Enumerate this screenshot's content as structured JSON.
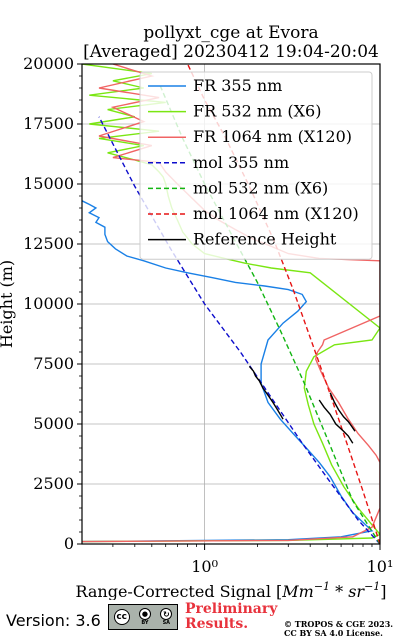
{
  "chart_data": {
    "type": "line",
    "title_line1": "pollyxt_cge at Evora",
    "title_line2": "[Averaged] 20230412 19:04-20:04",
    "xlabel": "Range-Corrected Signal [Mm⁻¹ * sr⁻¹]",
    "xlabel_parts": [
      "Range-Corrected Signal [",
      "Mm",
      "−1",
      " * ",
      "sr",
      "−1",
      "]"
    ],
    "ylabel": "Height (m)",
    "xscale": "log",
    "xlim": [
      0.2,
      10
    ],
    "ylim": [
      0,
      20000
    ],
    "x_tick_labels": [
      {
        "value": 1,
        "label": "10⁰"
      },
      {
        "value": 10,
        "label": "10¹"
      }
    ],
    "y_ticks": [
      0,
      2500,
      5000,
      7500,
      10000,
      12500,
      15000,
      17500,
      20000
    ],
    "y_tick_labels": [
      "0",
      "2500",
      "5000",
      "7500",
      "10000",
      "12500",
      "15000",
      "17500",
      "20000"
    ],
    "grid": true,
    "legend_position": "top-right",
    "series": [
      {
        "name": "FR 355 nm",
        "color": "#1a80e6",
        "style": "solid",
        "x": [
          0.2,
          3,
          6,
          9,
          8,
          7,
          6,
          5.2,
          4.5,
          3.8,
          3.2,
          2.7,
          2.3,
          2.1,
          2.1,
          2.3,
          2.8,
          3.4,
          3.8,
          3.6,
          3,
          2.2,
          1.5,
          1.1,
          0.8,
          0.6,
          0.45,
          0.36,
          0.31,
          0.28,
          0.27,
          0.27,
          0.24,
          0.25,
          0.22,
          0.24,
          0.22,
          0.2
        ],
        "y": [
          100,
          180,
          300,
          550,
          900,
          1300,
          2000,
          2800,
          3400,
          4000,
          4600,
          5200,
          5900,
          6700,
          7500,
          8500,
          9200,
          9700,
          10100,
          10400,
          10600,
          10750,
          10900,
          11100,
          11300,
          11500,
          11800,
          12000,
          12300,
          12600,
          12900,
          13200,
          13400,
          13600,
          13800,
          14000,
          14150,
          14300
        ]
      },
      {
        "name": "FR 532 nm (X6)",
        "color": "#7ae612",
        "style": "solid",
        "x": [
          0.2,
          3,
          9,
          10,
          9,
          7.5,
          6.2,
          5.3,
          4.7,
          4.2,
          3.9,
          3.7,
          3.8,
          4.2,
          5.5,
          9,
          10,
          4,
          2.4,
          1.7,
          1.3,
          1,
          0.85,
          0.75,
          0.7,
          0.65,
          0.62,
          0.6,
          0.58,
          0.55,
          0.5,
          0.4,
          0.28,
          0.45,
          0.25,
          0.55,
          0.22,
          0.4,
          0.28,
          0.6,
          0.22,
          0.45,
          0.3,
          0.5,
          0.2
        ],
        "y": [
          100,
          150,
          250,
          400,
          800,
          1500,
          2400,
          3300,
          4200,
          5000,
          5800,
          6500,
          7200,
          7800,
          8300,
          8500,
          9000,
          11300,
          11500,
          11700,
          11900,
          12100,
          12500,
          13000,
          13500,
          14000,
          14500,
          15000,
          15300,
          15500,
          15800,
          16000,
          16300,
          16600,
          16900,
          17200,
          17500,
          17800,
          18100,
          18400,
          18700,
          19000,
          19300,
          19600,
          20000
        ]
      },
      {
        "name": "FR 1064 nm (X120)",
        "color": "#f06464",
        "style": "solid",
        "x": [
          0.2,
          3,
          7,
          9,
          10,
          10,
          9.5,
          8.6,
          7.5,
          6.6,
          5.8,
          5.1,
          4.6,
          4.3,
          4.4,
          4.7,
          4.8,
          10,
          10,
          4.5,
          3,
          2.4,
          1.9,
          1.5,
          1.2,
          1,
          0.85,
          0.7,
          0.6,
          0.55,
          0.3,
          0.5,
          0.25,
          0.45,
          0.3,
          0.55,
          0.25,
          0.5,
          0.3
        ],
        "y": [
          100,
          150,
          300,
          700,
          1500,
          3400,
          3700,
          4100,
          4600,
          5200,
          5900,
          6500,
          7200,
          7700,
          8000,
          8300,
          8500,
          9500,
          11800,
          11900,
          12100,
          12400,
          12700,
          13100,
          13500,
          13900,
          14400,
          15000,
          15500,
          15900,
          16100,
          16600,
          17000,
          17600,
          18200,
          18600,
          19000,
          19500,
          20000
        ]
      },
      {
        "name": "mol 355 nm",
        "color": "#0d0dcc",
        "style": "dashed",
        "x": [
          10,
          7.5,
          5.3,
          3.6,
          2.45,
          1.6,
          1,
          0.64,
          0.4,
          0.25
        ],
        "y": [
          0,
          1000,
          2500,
          4200,
          6000,
          8000,
          10000,
          12300,
          14900,
          17800
        ]
      },
      {
        "name": "mol 532 nm (X6)",
        "color": "#12b512",
        "style": "dashed",
        "x": [
          10,
          7,
          5,
          3.7,
          2.7,
          2,
          1.4,
          1,
          0.75,
          0.55
        ],
        "y": [
          0,
          1800,
          4400,
          6700,
          8900,
          10900,
          13000,
          15000,
          16900,
          19200
        ]
      },
      {
        "name": "mol 1064 nm (X120)",
        "color": "#e61414",
        "style": "dashed",
        "x": [
          10,
          8,
          6.2,
          5,
          4,
          3.2,
          2.5,
          1.8,
          1.3,
          1,
          0.8
        ],
        "y": [
          0,
          2200,
          4600,
          6600,
          8600,
          10600,
          12600,
          14900,
          17000,
          18500,
          20000
        ]
      },
      {
        "name": "Reference Height",
        "color": "#000000",
        "style": "solid",
        "segments": [
          {
            "x": [
              1.8,
              1.9,
              1.95,
              2.05,
              2.15,
              2.3,
              2.45,
              2.6,
              2.75,
              2.8
            ],
            "y": [
              7400,
              7200,
              7000,
              6800,
              6500,
              6200,
              5900,
              5600,
              5300,
              5200
            ]
          },
          {
            "x": [
              4.5,
              4.8,
              5.2,
              5.6,
              6.2,
              6.6,
              7
            ],
            "y": [
              6000,
              5700,
              5400,
              5000,
              4700,
              4500,
              4200
            ]
          },
          {
            "x": [
              5.2,
              5.5,
              5.8,
              6.2,
              6.6,
              6.9,
              7.2
            ],
            "y": [
              6300,
              5900,
              5600,
              5300,
              5100,
              4900,
              4700
            ]
          }
        ]
      }
    ]
  },
  "footer": {
    "version": "Version: 3.6",
    "badge_by": "BY",
    "badge_sa": "SA",
    "badge_cc": "cc",
    "preliminary_line1": "Preliminary",
    "preliminary_line2": "Results.",
    "copyright_line1": "© TROPOS & CGE 2023.",
    "copyright_line2": "CC BY SA 4.0 License."
  }
}
